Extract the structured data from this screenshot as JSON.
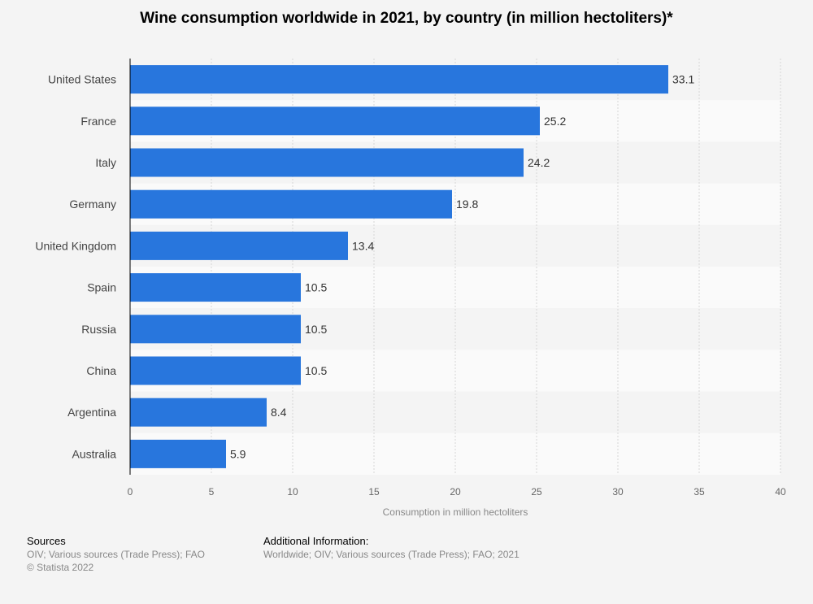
{
  "chart_data": {
    "type": "bar",
    "orientation": "horizontal",
    "title": "Wine consumption worldwide in 2021, by country (in million hectoliters)*",
    "categories": [
      "United States",
      "France",
      "Italy",
      "Germany",
      "United Kingdom",
      "Spain",
      "Russia",
      "China",
      "Argentina",
      "Australia"
    ],
    "values": [
      33.1,
      25.2,
      24.2,
      19.8,
      13.4,
      10.5,
      10.5,
      10.5,
      8.4,
      5.9
    ],
    "value_labels": [
      "33.1",
      "25.2",
      "24.2",
      "19.8",
      "13.4",
      "10.5",
      "10.5",
      "10.5",
      "8.4",
      "5.9"
    ],
    "xlabel": "Consumption in million hectoliters",
    "ylabel": "",
    "xlim": [
      0,
      40
    ],
    "xticks": [
      0,
      5,
      10,
      15,
      20,
      25,
      30,
      35,
      40
    ],
    "xtick_labels": [
      "0",
      "5",
      "10",
      "15",
      "20",
      "25",
      "30",
      "35",
      "40"
    ],
    "grid": true,
    "bar_color": "#2876dd"
  },
  "footer": {
    "sources_heading": "Sources",
    "sources_line1": "OIV; Various sources (Trade Press); FAO",
    "sources_line2": "© Statista 2022",
    "additional_heading": "Additional Information:",
    "additional_line1": "Worldwide; OIV; Various sources (Trade Press); FAO; 2021"
  }
}
